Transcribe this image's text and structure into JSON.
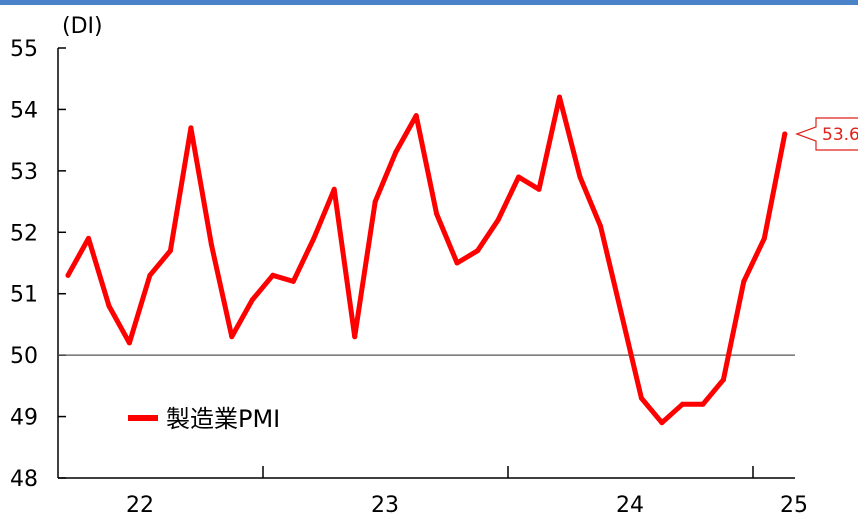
{
  "chart_data": {
    "type": "line",
    "title": "",
    "unit_label": "(DI)",
    "xlabel": "",
    "ylabel": "",
    "ylim": [
      48,
      55
    ],
    "y_ticks": [
      48,
      49,
      50,
      51,
      52,
      53,
      54,
      55
    ],
    "x_tick_labels": [
      "22",
      "23",
      "24",
      "25"
    ],
    "reference_line": 50,
    "legend_position": "bottom-left",
    "grid": false,
    "series": [
      {
        "name": "製造業PMI",
        "color": "#ff0000",
        "values": [
          51.3,
          51.9,
          50.8,
          50.2,
          51.3,
          51.7,
          53.7,
          51.8,
          50.3,
          50.9,
          51.3,
          51.2,
          51.9,
          52.7,
          50.3,
          52.5,
          53.3,
          53.9,
          52.3,
          51.5,
          51.7,
          52.2,
          52.9,
          52.7,
          54.2,
          52.9,
          52.1,
          50.7,
          49.3,
          48.9,
          49.2,
          49.2,
          49.6,
          51.2,
          51.9,
          53.6
        ]
      }
    ],
    "annotation": {
      "text": "53.6",
      "value": 53.6
    }
  },
  "colors": {
    "top_bar": "#4a82c8",
    "axis": "#000000",
    "reference_line": "#555555",
    "callout": "#e0201b"
  }
}
